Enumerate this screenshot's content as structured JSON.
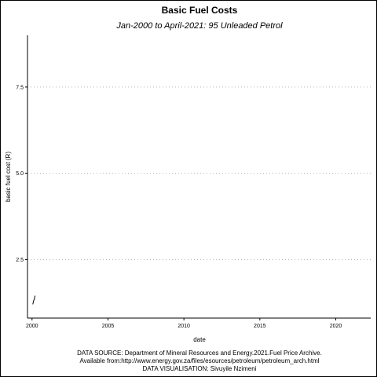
{
  "chart_data": {
    "type": "line",
    "title": "Basic Fuel Costs",
    "subtitle": "Jan-2000 to April-2021: 95 Unleaded Petrol",
    "xlabel": "date",
    "ylabel": "basic fuel cost (R)",
    "xlim": [
      1999.7,
      2022.3
    ],
    "ylim": [
      0.8,
      9.0
    ],
    "x_ticks": [
      2000,
      2005,
      2010,
      2015,
      2020
    ],
    "x_tick_labels": [
      "2000",
      "2005",
      "2010",
      "2015",
      "2020"
    ],
    "y_ticks": [
      2.5,
      5.0,
      7.5
    ],
    "y_tick_labels": [
      "2.5",
      "5.0",
      "7.5"
    ],
    "grid": "horizontal-dotted",
    "series": [
      {
        "color": "#000000",
        "x": [
          2000.05,
          2000.1,
          2000.15,
          2000.2
        ],
        "y": [
          1.2,
          1.3,
          1.35,
          1.45
        ]
      }
    ]
  },
  "caption": {
    "line1": "DATA SOURCE: Department of Mineral Resources and Energy.2021.Fuel Price Archive.",
    "line2": "Available from:http://www.energy.gov.za/files/esources/petroleum/petroleum_arch.html",
    "line3": "DATA VISUALISATION: Sivuyile Nzimeni"
  },
  "colors": {
    "grid": "#b3b3b3",
    "axis": "#000000",
    "background": "#ffffff"
  }
}
